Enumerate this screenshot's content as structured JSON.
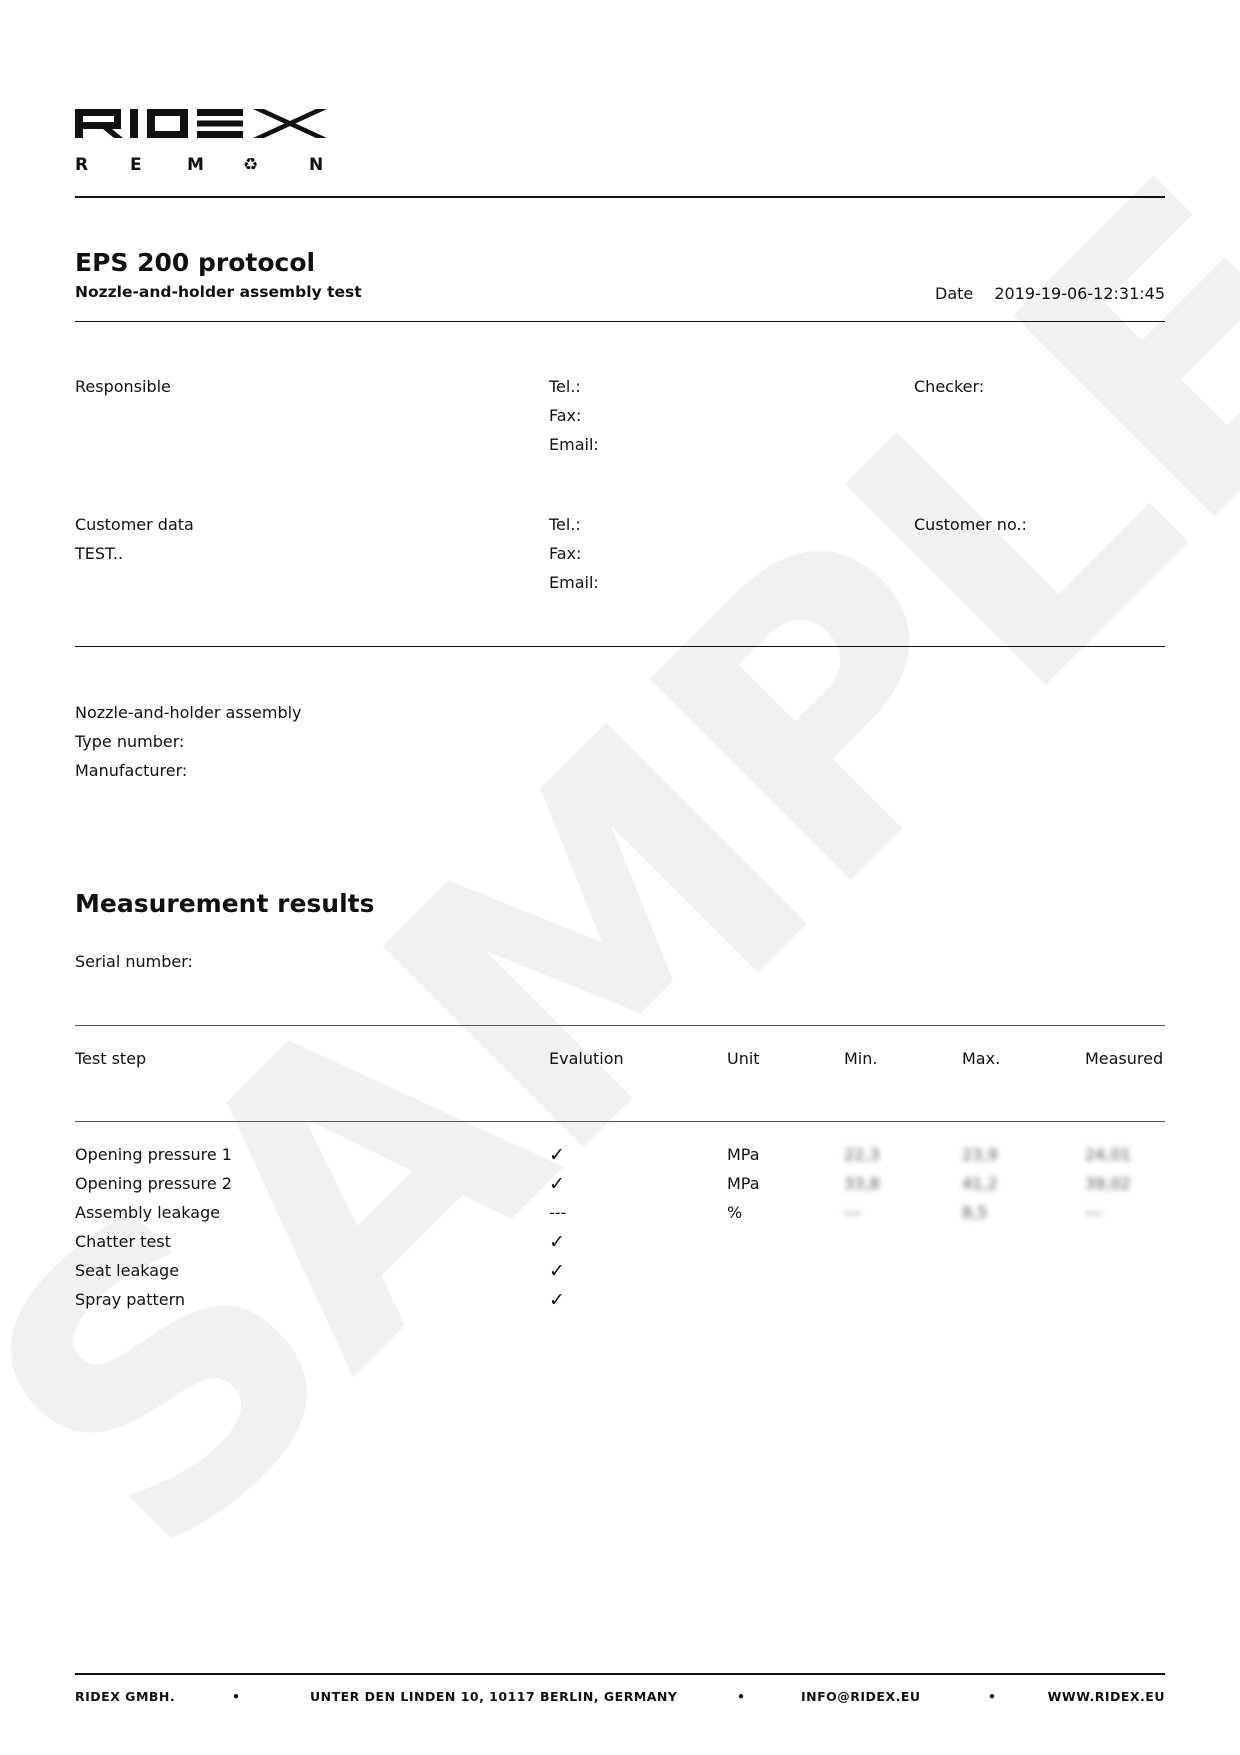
{
  "watermark": "SAMPLE",
  "logo": {
    "brand": "RIDEX",
    "sub": "REMAN"
  },
  "header": {
    "title": "EPS 200 protocol",
    "subtitle": "Nozzle-and-holder assembly test",
    "date_label": "Date",
    "date_value": "2019-19-06-12:31:45"
  },
  "responsible": {
    "label": "Responsible",
    "tel": "Tel.:",
    "fax": "Fax:",
    "email": "Email:",
    "checker": "Checker:"
  },
  "customer": {
    "label": "Customer data",
    "name": "TEST..",
    "tel": "Tel.:",
    "fax": "Fax:",
    "email": "Email:",
    "number": "Customer no.:"
  },
  "assembly": {
    "label": "Nozzle-and-holder assembly",
    "type": "Type number:",
    "manufacturer": "Manufacturer:"
  },
  "results": {
    "title": "Measurement results",
    "serial": "Serial number:",
    "columns": [
      "Test step",
      "Evalution",
      "Unit",
      "Min.",
      "Max.",
      "Measured"
    ],
    "rows": [
      [
        "Opening pressure 1",
        "✓",
        "MPa",
        "22,3",
        "23,9",
        "24,01"
      ],
      [
        "Opening pressure 2",
        "✓",
        "MPa",
        "33,8",
        "41,2",
        "39,02"
      ],
      [
        "Assembly leakage",
        "---",
        "%",
        "---",
        "8,5",
        "---"
      ],
      [
        "Chatter test",
        "✓",
        "",
        "",
        "",
        ""
      ],
      [
        "Seat leakage",
        "✓",
        "",
        "",
        "",
        ""
      ],
      [
        "Spray pattern",
        "✓",
        "",
        "",
        "",
        ""
      ]
    ]
  },
  "footer": {
    "company": "RIDEX GMBH.",
    "address": "UNTER DEN LINDEN 10, 10117 BERLIN, GERMANY",
    "email": "INFO@RIDEX.EU",
    "web": "WWW.RIDEX.EU",
    "separator": "•"
  }
}
